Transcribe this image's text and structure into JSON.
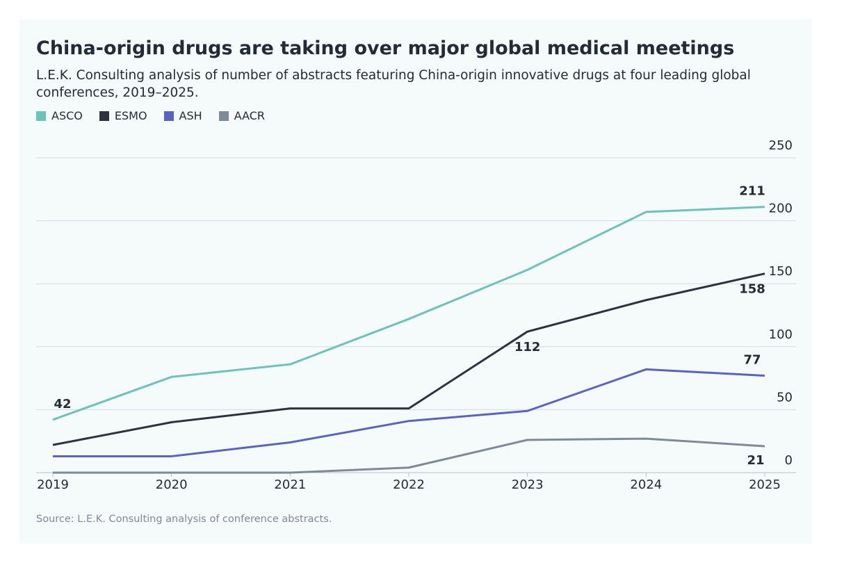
{
  "chart_data": {
    "type": "line",
    "title": "China-origin drugs are taking over major global medical meetings",
    "subtitle": "L.E.K. Consulting analysis of number of abstracts featuring China-origin innovative drugs at four leading global conferences, 2019–2025.",
    "source": "Source: L.E.K. Consulting analysis of conference abstracts.",
    "categories": [
      "2019",
      "2020",
      "2021",
      "2022",
      "2023",
      "2024",
      "2025"
    ],
    "series": [
      {
        "name": "ASCO",
        "color": "#6cc3b9",
        "values": [
          42,
          76,
          86,
          122,
          161,
          207,
          211
        ],
        "labeled_points": [
          0,
          6
        ]
      },
      {
        "name": "ESMO",
        "color": "#2b3340",
        "values": [
          22,
          40,
          51,
          51,
          112,
          137,
          158
        ],
        "labeled_points": [
          4,
          6
        ]
      },
      {
        "name": "ASH",
        "color": "#5a63c4",
        "values": [
          13,
          13,
          24,
          41,
          49,
          82,
          77
        ],
        "labeled_points": [
          6
        ]
      },
      {
        "name": "AACR",
        "color": "#7f8a98",
        "values": [
          0,
          0,
          0,
          4,
          26,
          27,
          21
        ],
        "labeled_points": [
          6
        ]
      }
    ],
    "ylim": [
      0,
      250
    ],
    "yticks": [
      0,
      50,
      100,
      150,
      200,
      250
    ],
    "grid": true,
    "y_axis_side": "right"
  }
}
